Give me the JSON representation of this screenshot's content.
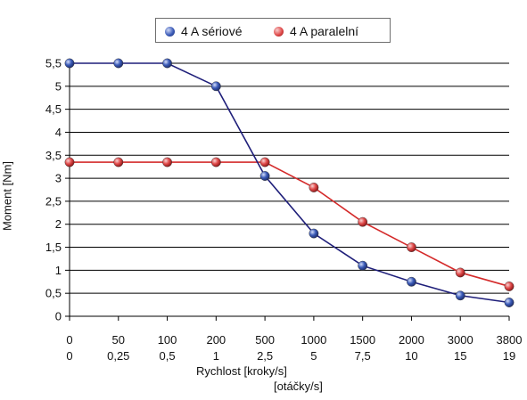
{
  "chart_data": {
    "type": "line",
    "title": "",
    "ylabel": "Moment [Nm]",
    "xlabel": "Rychlost [kroky/s]",
    "xlabel_secondary": "[otáčky/s]",
    "categories": [
      "0",
      "50",
      "100",
      "200",
      "500",
      "1000",
      "1500",
      "2000",
      "3000",
      "3800"
    ],
    "categories_secondary": [
      "0",
      "0,25",
      "0,5",
      "1",
      "2,5",
      "5",
      "7,5",
      "10",
      "15",
      "19"
    ],
    "ylim": [
      0,
      5.5
    ],
    "yticks": [
      "0",
      "0,5",
      "1",
      "1,5",
      "2",
      "2,5",
      "3",
      "3,5",
      "4",
      "4,5",
      "5",
      "5,5"
    ],
    "grid": "horizontal",
    "legend_position": "top-center",
    "series": [
      {
        "name": "4 A sériové",
        "color": "#1f1f7a",
        "marker": "#3b5bb8",
        "values": [
          5.5,
          5.5,
          5.5,
          5.0,
          3.05,
          1.8,
          1.1,
          0.75,
          0.45,
          0.3
        ]
      },
      {
        "name": "4 A paralelní",
        "color": "#d42a2a",
        "marker": "#e04a4a",
        "values": [
          3.35,
          3.35,
          3.35,
          3.35,
          3.35,
          2.8,
          2.05,
          1.5,
          0.95,
          0.65
        ]
      }
    ]
  }
}
